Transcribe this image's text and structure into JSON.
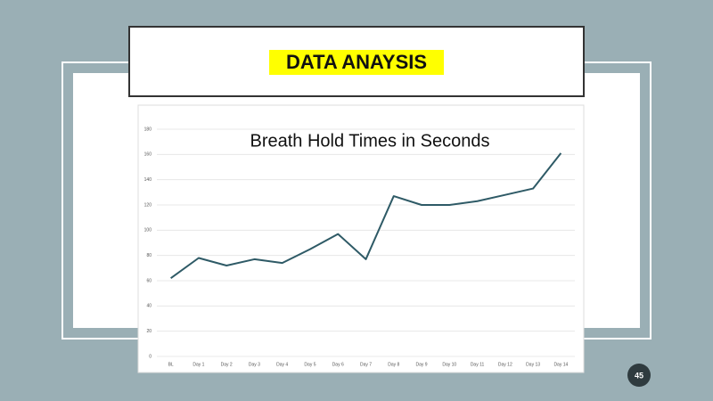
{
  "slide": {
    "title": "DATA ANAYSIS",
    "page_number": "45"
  },
  "chart_data": {
    "type": "line",
    "title": "Breath Hold Times in Seconds",
    "categories": [
      "BL",
      "Day 1",
      "Day 2",
      "Day 3",
      "Day 4",
      "Day 5",
      "Day 6",
      "Day 7",
      "Day 8",
      "Day 9",
      "Day 10",
      "Day 11",
      "Day 12",
      "Day 13",
      "Day 14"
    ],
    "values": [
      62,
      78,
      72,
      77,
      74,
      85,
      97,
      77,
      127,
      120,
      120,
      123,
      128,
      133,
      161
    ],
    "color": "#2e5a66",
    "ylim": [
      0,
      180
    ],
    "yticks": [
      0,
      20,
      40,
      60,
      80,
      100,
      120,
      140,
      160,
      180
    ],
    "grid": true
  }
}
